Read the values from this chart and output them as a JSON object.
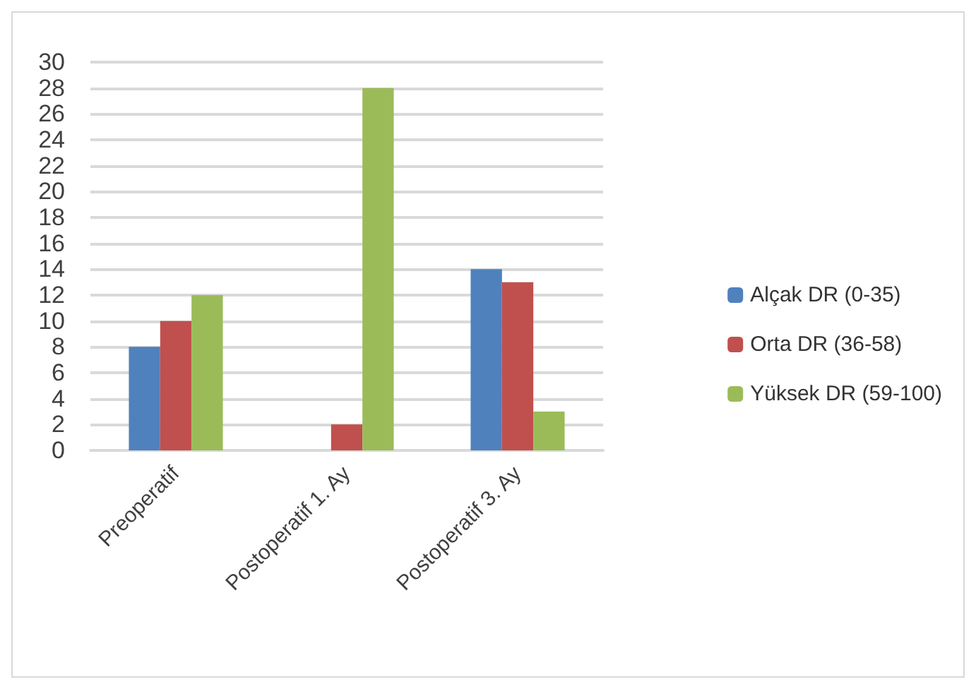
{
  "chart_data": {
    "type": "bar",
    "categories": [
      "Preoperatif",
      "Postoperatif 1. Ay",
      "Postoperatif 3. Ay"
    ],
    "series": [
      {
        "name": "Alçak DR (0-35)",
        "color": "#4f81bd",
        "values": [
          8,
          0,
          14
        ]
      },
      {
        "name": "Orta DR (36-58)",
        "color": "#c0504d",
        "values": [
          10,
          2,
          13
        ]
      },
      {
        "name": "Yüksek DR (59-100)",
        "color": "#9bbb59",
        "values": [
          12,
          28,
          3
        ]
      }
    ],
    "ylim": [
      0,
      30
    ],
    "yticks": [
      0,
      2,
      4,
      6,
      8,
      10,
      12,
      14,
      16,
      18,
      20,
      22,
      24,
      26,
      28,
      30
    ],
    "grid": "y",
    "legend": "right"
  }
}
